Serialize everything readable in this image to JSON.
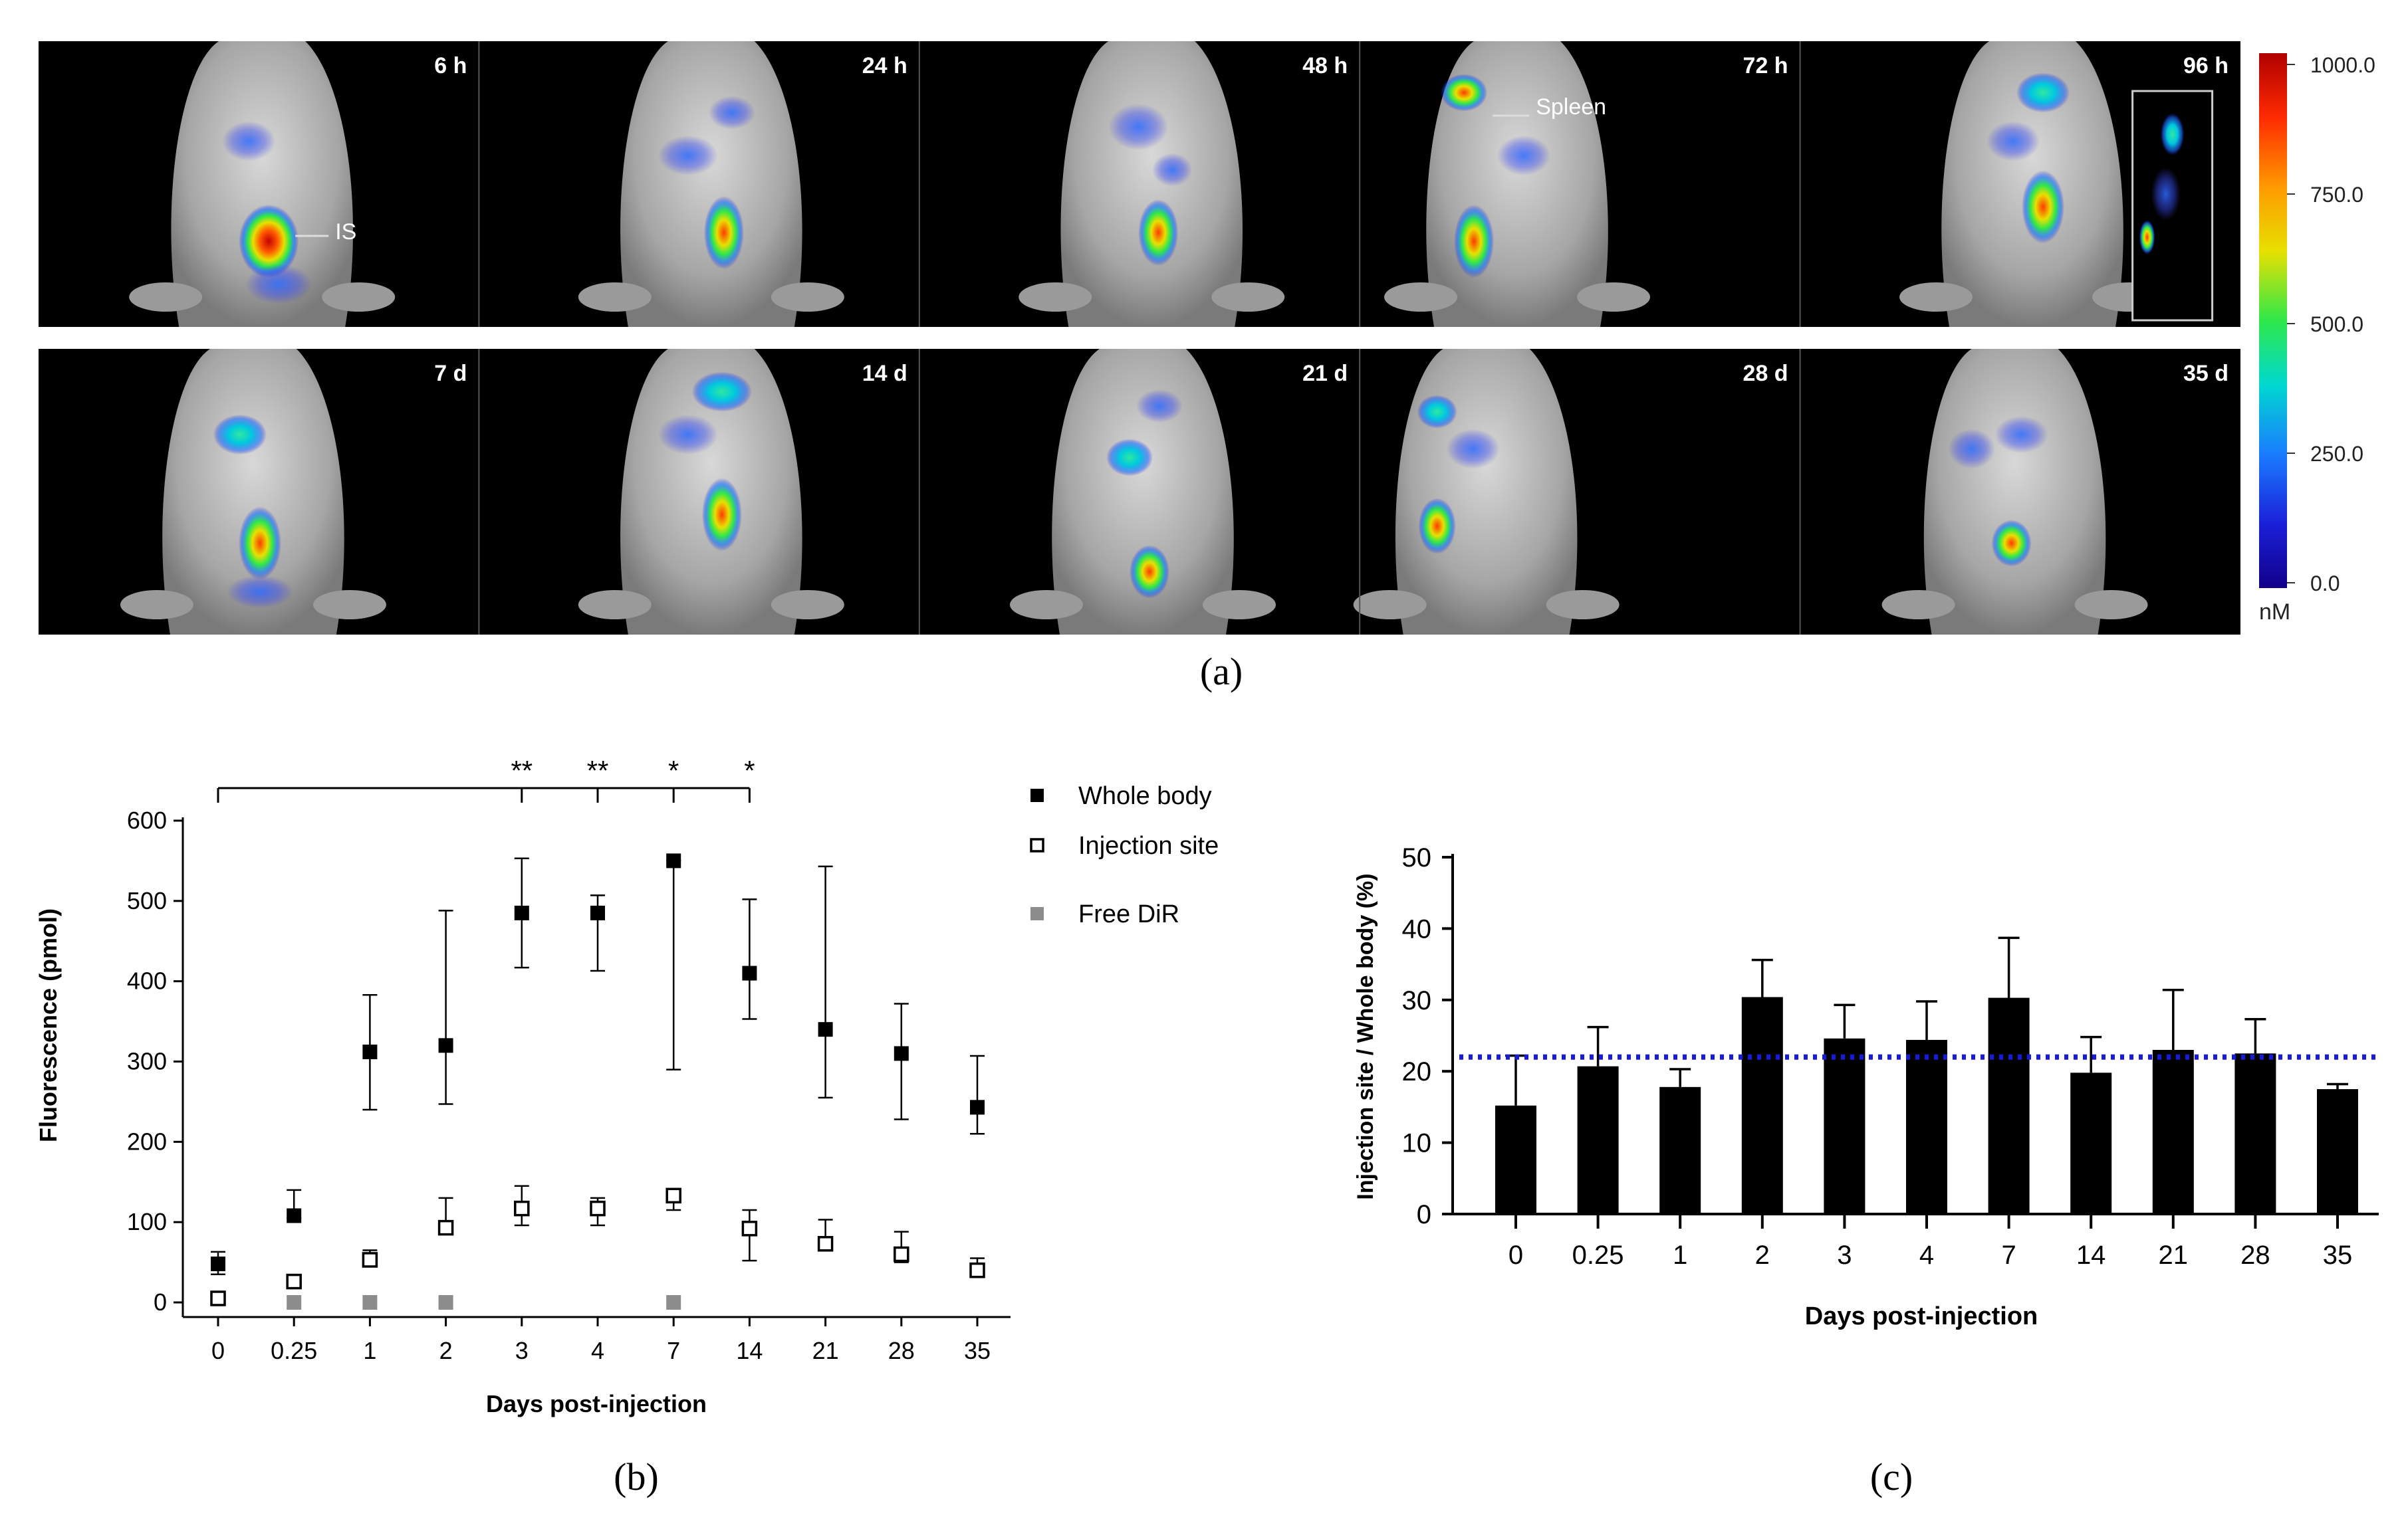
{
  "panel_a": {
    "caption": "(a)",
    "rows": [
      [
        "6 h",
        "24 h",
        "48 h",
        "72 h",
        "96 h"
      ],
      [
        "7 d",
        "14 d",
        "21 d",
        "28 d",
        "35 d"
      ]
    ],
    "annotations": {
      "injection_site": "IS",
      "spleen": "Spleen"
    },
    "colorbar": {
      "ticks": [
        "1000.0",
        "750.0",
        "500.0",
        "250.0",
        "0.0"
      ],
      "unit": "nM",
      "colors": [
        "#b00000",
        "#ff2a00",
        "#ff9a00",
        "#e8e000",
        "#2ee84a",
        "#00d8d0",
        "#1a7cff",
        "#1a20d8",
        "#12008a"
      ]
    }
  },
  "chart_data": [
    {
      "type": "scatter",
      "panel": "(b)",
      "xlabel": "Days post-injection",
      "ylabel": "Fluorescence (pmol)",
      "categories": [
        "0",
        "0.25",
        "1",
        "2",
        "3",
        "4",
        "7",
        "14",
        "21",
        "28",
        "35"
      ],
      "ylim": [
        0,
        600
      ],
      "yticks": [
        0,
        100,
        200,
        300,
        400,
        500,
        600
      ],
      "legend_position": "top-right",
      "series": [
        {
          "name": "Whole body",
          "marker": "filled-square",
          "color": "#000000",
          "values": [
            48,
            108,
            312,
            320,
            485,
            485,
            550,
            410,
            340,
            310,
            243
          ],
          "error_low": [
            35,
            105,
            240,
            247,
            417,
            413,
            290,
            353,
            255,
            228,
            210
          ],
          "error_high": [
            63,
            140,
            383,
            488,
            553,
            507,
            550,
            502,
            543,
            372,
            307
          ]
        },
        {
          "name": "Injection site",
          "marker": "open-square",
          "color": "#000000",
          "values": [
            5,
            26,
            53,
            93,
            117,
            117,
            133,
            92,
            73,
            60,
            40
          ],
          "error_low": [
            0,
            26,
            45,
            88,
            96,
            96,
            115,
            52,
            68,
            50,
            33
          ],
          "error_high": [
            8,
            26,
            65,
            130,
            145,
            130,
            133,
            115,
            103,
            88,
            55
          ]
        },
        {
          "name": "Free DiR",
          "marker": "gray-square",
          "color": "#8c8c8c",
          "x": [
            "0.25",
            "1",
            "2",
            "7"
          ],
          "values": [
            0,
            0,
            0,
            0
          ]
        }
      ],
      "significance": {
        "bracket_from": "0",
        "marks": [
          {
            "x": "3",
            "label": "**"
          },
          {
            "x": "4",
            "label": "**"
          },
          {
            "x": "7",
            "label": "*"
          },
          {
            "x": "14",
            "label": "*"
          }
        ]
      }
    },
    {
      "type": "bar",
      "panel": "(c)",
      "xlabel": "Days post-injection",
      "ylabel": "Injection site / Whole body (%)",
      "categories": [
        "0",
        "0.25",
        "1",
        "2",
        "3",
        "4",
        "7",
        "14",
        "21",
        "28",
        "35"
      ],
      "values": [
        15.2,
        20.7,
        17.8,
        30.4,
        24.6,
        24.4,
        30.3,
        19.8,
        23.0,
        22.5,
        17.5
      ],
      "error_high": [
        22.2,
        26.2,
        20.3,
        35.6,
        29.3,
        29.8,
        38.7,
        24.8,
        31.4,
        27.3,
        18.2
      ],
      "ylim": [
        0,
        50
      ],
      "yticks": [
        0,
        10,
        20,
        30,
        40,
        50
      ],
      "reference_line": {
        "value": 22,
        "style": "dotted",
        "color": "#1a1adc"
      },
      "bar_color": "#000000"
    }
  ]
}
